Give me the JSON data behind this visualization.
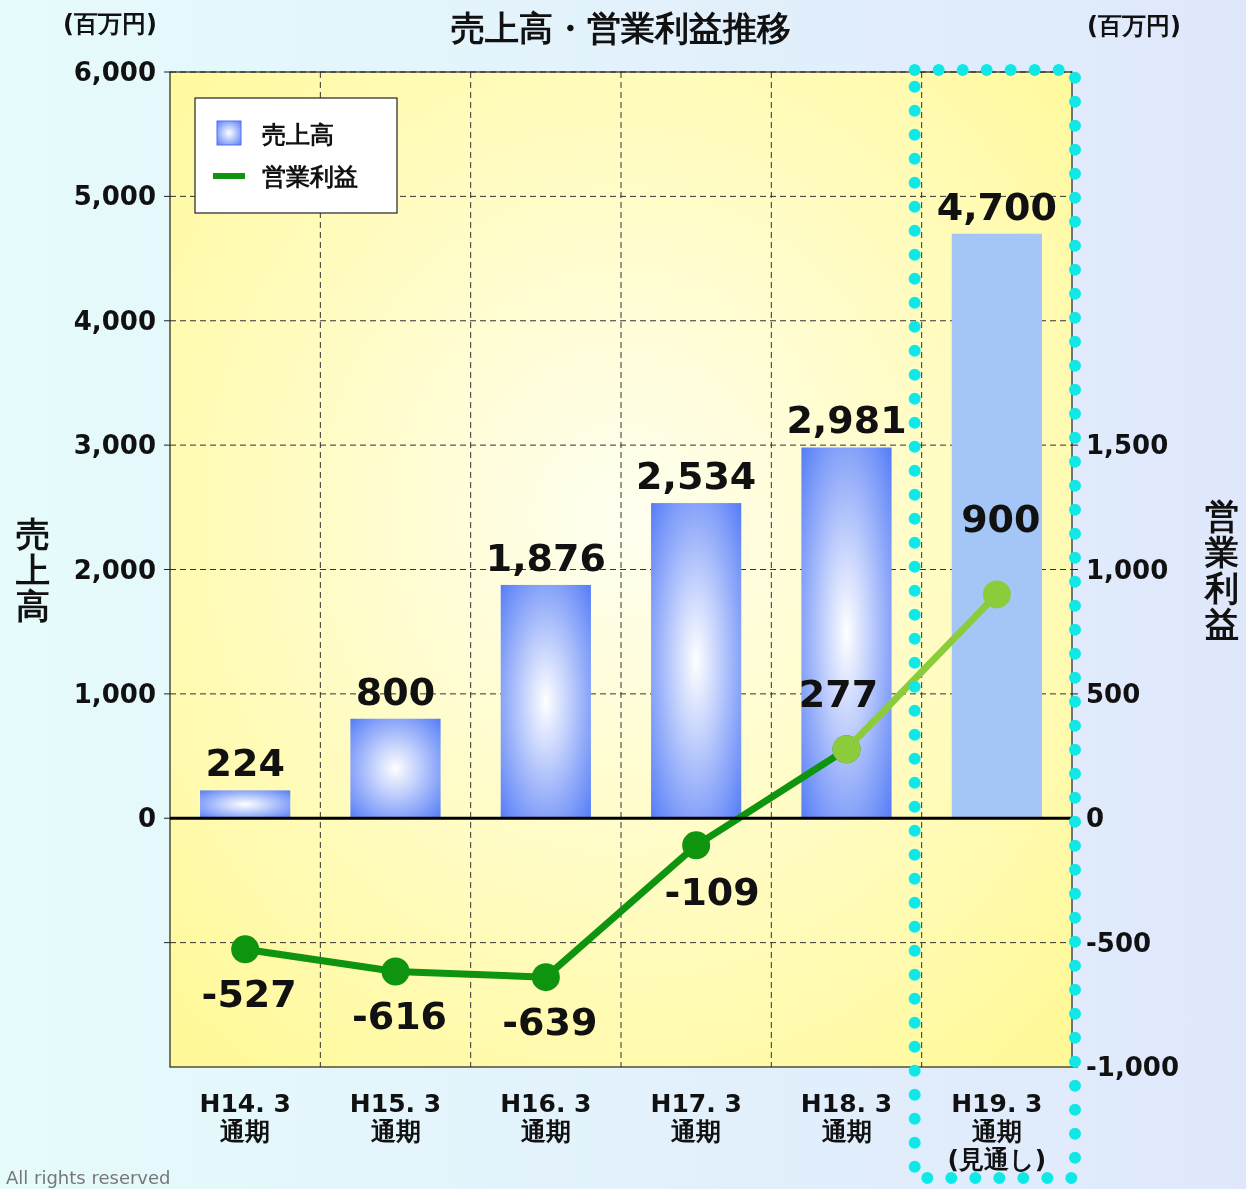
{
  "chart_data": {
    "type": "bar",
    "title": "売上高・営業利益推移",
    "categories": [
      "H14. 3\n通期",
      "H15. 3\n通期",
      "H16. 3\n通期",
      "H17. 3\n通期",
      "H18. 3\n通期",
      "H19. 3\n通期\n(見通し)"
    ],
    "series": [
      {
        "name": "売上高",
        "color": "#4a74f6",
        "colors": [
          "#4a74f6",
          "#4a74f6",
          "#4a74f6",
          "#4a74f6",
          "#4a74f6",
          "#a4c6f6"
        ],
        "values": [
          224,
          800,
          1876,
          2534,
          2981,
          4700
        ],
        "value_labels": [
          "224",
          "800",
          "1,876",
          "2,534",
          "2,981",
          "4,700"
        ]
      },
      {
        "name": "営業利益",
        "type": "line",
        "axis": "y2",
        "color": "#0e940e",
        "values": [
          -527,
          -616,
          -639,
          -109,
          277,
          null
        ],
        "value_labels": [
          "-527",
          "-616",
          "-639",
          "-109",
          "277",
          null
        ]
      },
      {
        "type": "line",
        "axis": "y2",
        "color": "#8ccc3c",
        "values": [
          null,
          null,
          null,
          null,
          277,
          900
        ],
        "value_labels": [
          null,
          null,
          null,
          null,
          null,
          "900"
        ]
      }
    ],
    "ylabel": "売上高",
    "y2label": "営業利益",
    "ylim": [
      -2000,
      6000
    ],
    "yticks": [
      {
        "value": -1000,
        "label": null
      },
      0,
      {
        "value": 1000,
        "label": "1,000"
      },
      {
        "value": 2000,
        "label": "2,000"
      },
      {
        "value": 3000,
        "label": "3,000"
      },
      {
        "value": 4000,
        "label": "4,000"
      },
      {
        "value": 5000,
        "label": "5,000"
      },
      {
        "value": 6000,
        "label": "6,000"
      }
    ],
    "y2lim": [
      -1000,
      3000
    ],
    "y2ticks": [
      {
        "value": -1000,
        "label": "-1,000"
      },
      -500,
      0,
      500,
      {
        "value": 1000,
        "label": "1,000"
      },
      {
        "value": 1500,
        "label": "1,500"
      }
    ],
    "annotations": [
      "(百万円)",
      "(百万円)",
      "All rights reserved"
    ],
    "grid": true,
    "legend": "top left",
    "marker": "circle",
    "line_style": "solid"
  }
}
